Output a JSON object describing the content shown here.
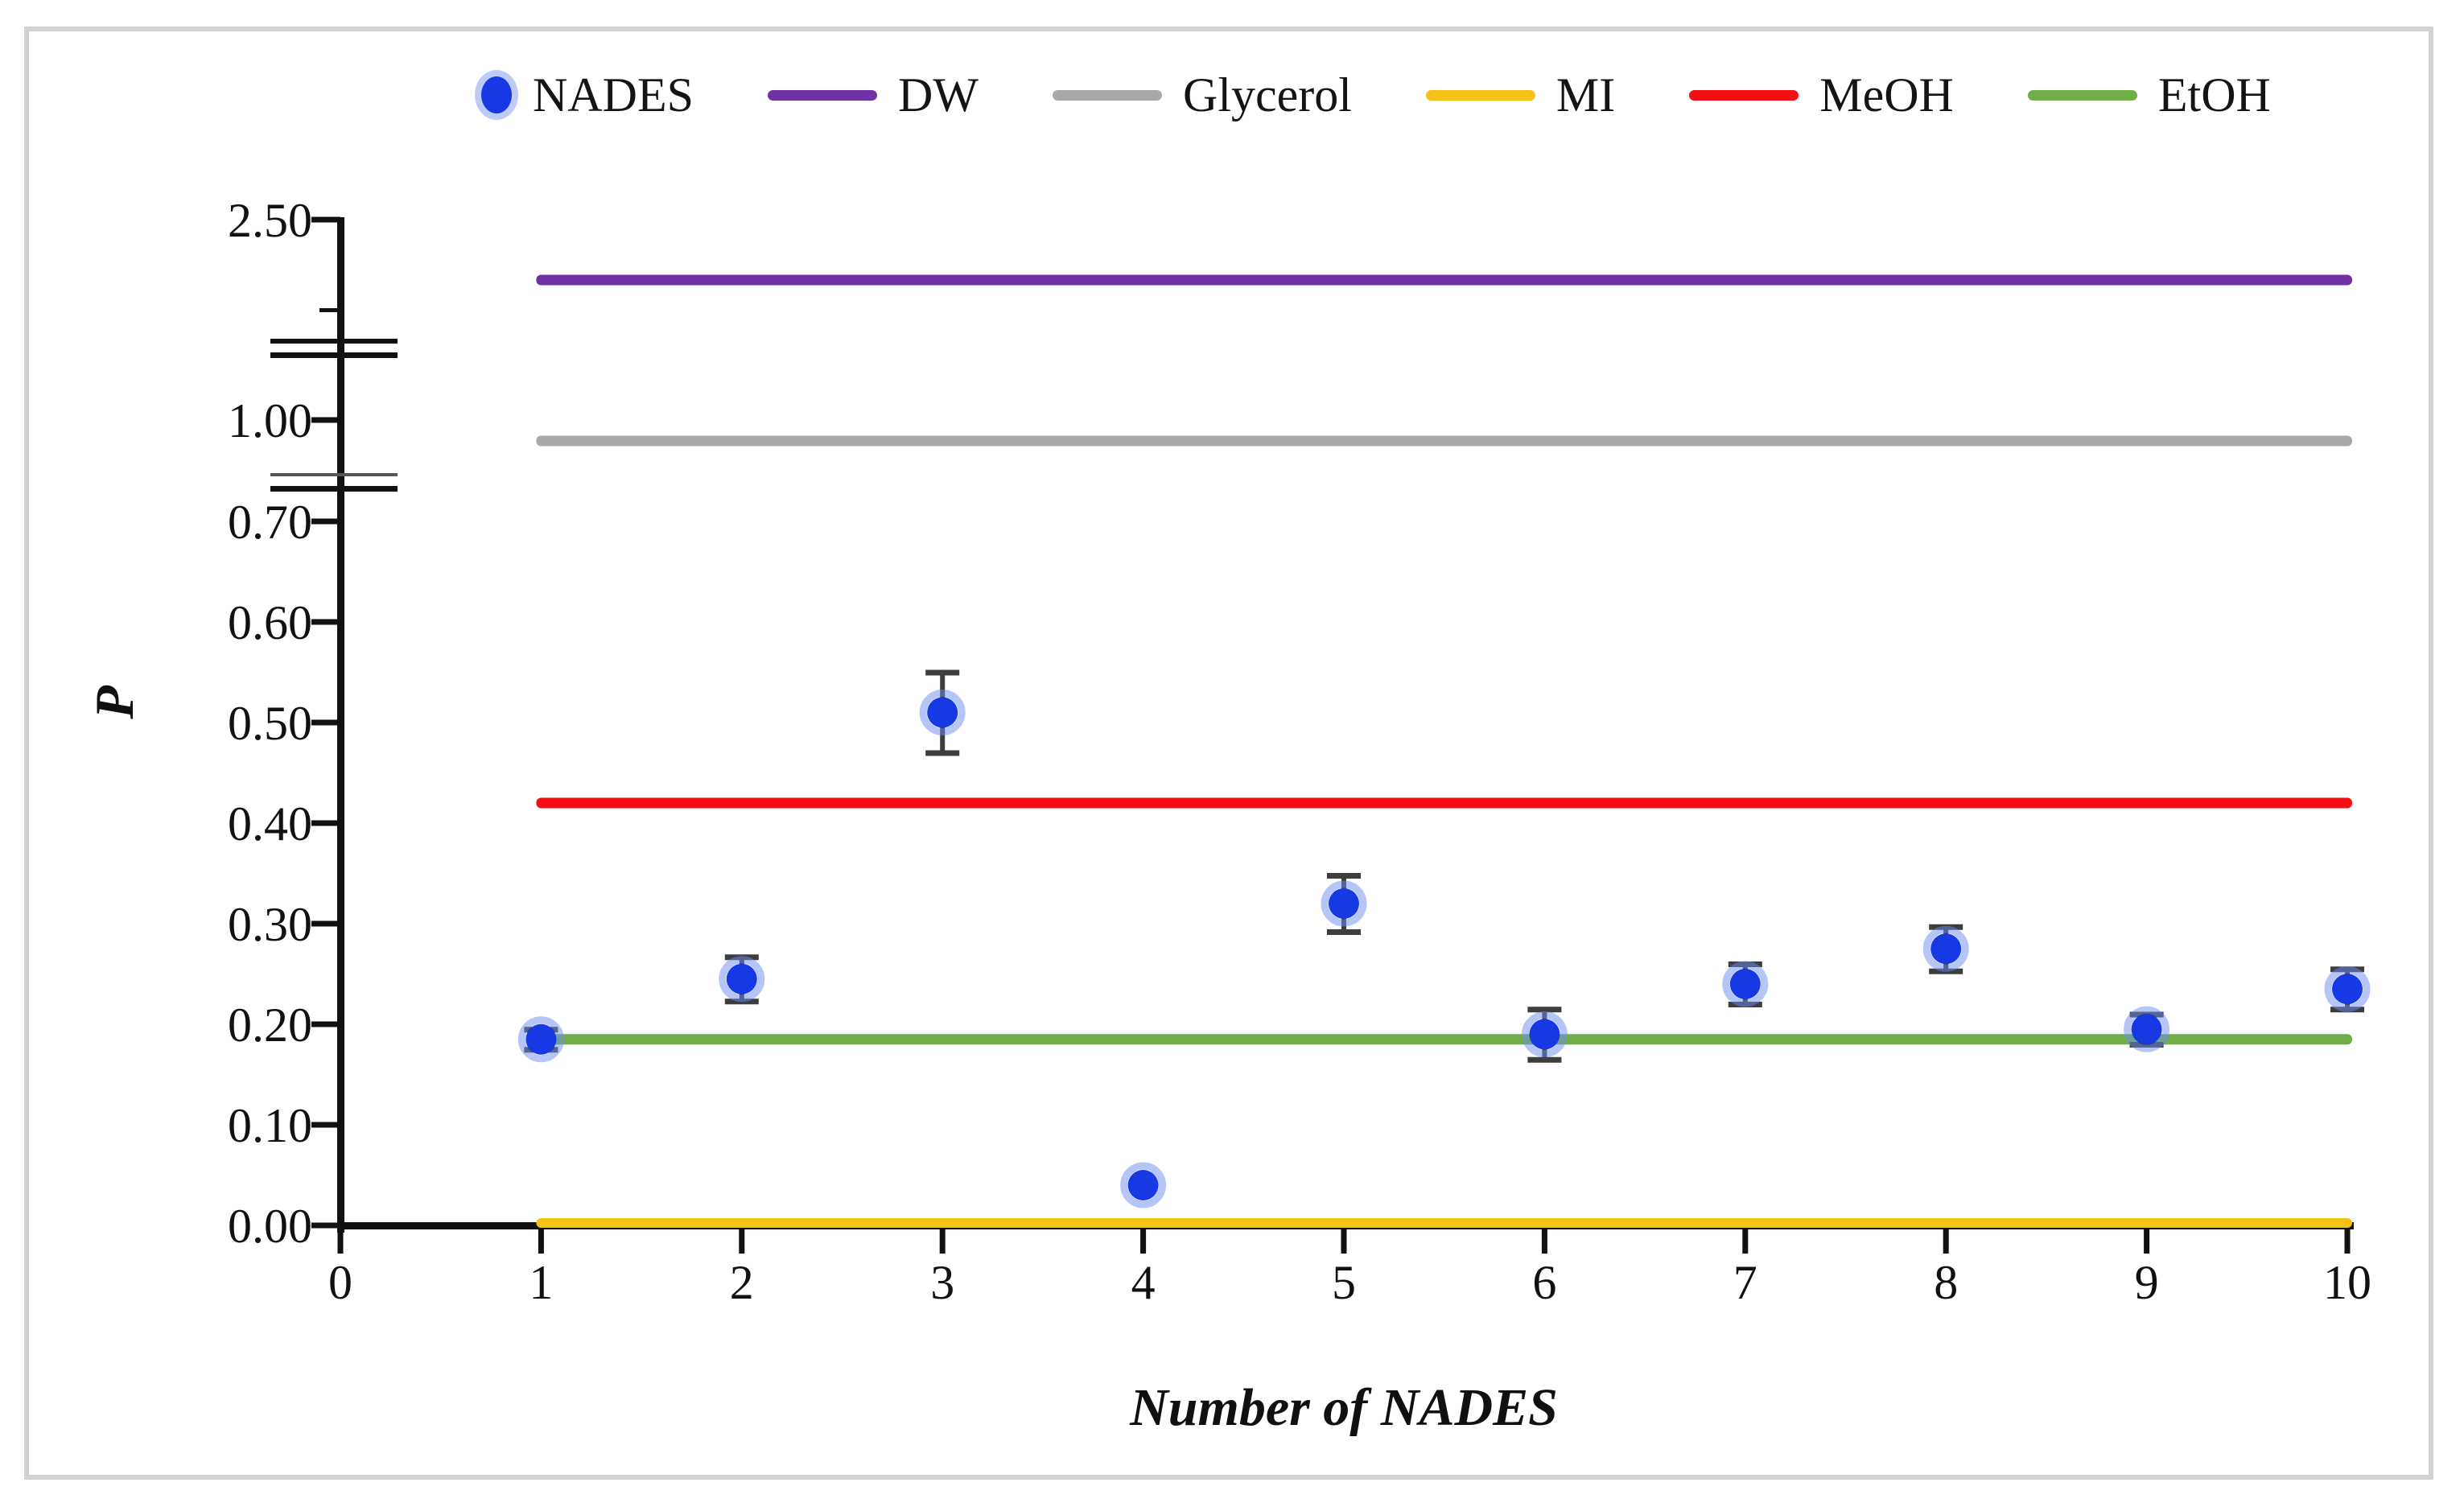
{
  "figure": {
    "background": "#ffffff",
    "border_color": "#d2d2d2"
  },
  "legend": {
    "items": [
      {
        "label": "NADES",
        "marker": "dot",
        "color": "#1639e4"
      },
      {
        "label": "DW",
        "marker": "line",
        "color": "#7231a5"
      },
      {
        "label": "Glycerol",
        "marker": "line",
        "color": "#a8a8a8"
      },
      {
        "label": "MI",
        "marker": "line",
        "color": "#f5c117"
      },
      {
        "label": "MeOH",
        "marker": "line",
        "color": "#f40f12"
      },
      {
        "label": "EtOH",
        "marker": "line",
        "color": "#6fae47"
      }
    ]
  },
  "chart_data": {
    "type": "scatter",
    "title": "",
    "xlabel": "Number of NADES",
    "ylabel": "P",
    "grid": false,
    "legend_position": "top",
    "x_range": [
      0,
      10.5
    ],
    "x_ticks": [
      "0",
      "1",
      "2",
      "3",
      "4",
      "5",
      "6",
      "7",
      "8",
      "9",
      "10"
    ],
    "y_ticks": [
      {
        "label": "2.50",
        "value": 2.5
      },
      {
        "label": "1.00",
        "value": 1.0
      },
      {
        "label": "0.70",
        "value": 0.7
      },
      {
        "label": "0.60",
        "value": 0.6
      },
      {
        "label": "0.50",
        "value": 0.5
      },
      {
        "label": "0.40",
        "value": 0.4
      },
      {
        "label": "0.30",
        "value": 0.3
      },
      {
        "label": "0.20",
        "value": 0.2
      },
      {
        "label": "0.10",
        "value": 0.1
      },
      {
        "label": "0.00",
        "value": 0.0
      }
    ],
    "y_axis_minor_tick_value": 2.35,
    "y_axis_breaks": [
      {
        "between": [
          "2.50",
          "1.00"
        ]
      },
      {
        "between": [
          "1.00",
          "0.70"
        ]
      }
    ],
    "series": [
      {
        "name": "NADES",
        "marker": "circle",
        "color": "#1639e4",
        "halo_color": "rgba(110,140,240,0.5)",
        "error_bar_color": "#3d3d3d",
        "x": [
          1,
          2,
          3,
          4,
          5,
          6,
          7,
          8,
          9,
          10
        ],
        "y": [
          0.185,
          0.245,
          0.51,
          0.04,
          0.32,
          0.19,
          0.24,
          0.275,
          0.195,
          0.235
        ],
        "yerr": [
          0.01,
          0.022,
          0.04,
          0,
          0.028,
          0.025,
          0.02,
          0.022,
          0.015,
          0.02
        ]
      }
    ],
    "reference_lines": [
      {
        "name": "DW",
        "value": 2.4,
        "color": "#7231a5"
      },
      {
        "name": "Glycerol",
        "value": 0.96,
        "color": "#a8a8a8"
      },
      {
        "name": "MeOH",
        "value": 0.42,
        "color": "#f40f12"
      },
      {
        "name": "EtOH",
        "value": 0.185,
        "color": "#6fae47"
      },
      {
        "name": "MI",
        "value": 0.0,
        "color": "#f5c117"
      }
    ],
    "lines_x_range": [
      1,
      10
    ]
  }
}
